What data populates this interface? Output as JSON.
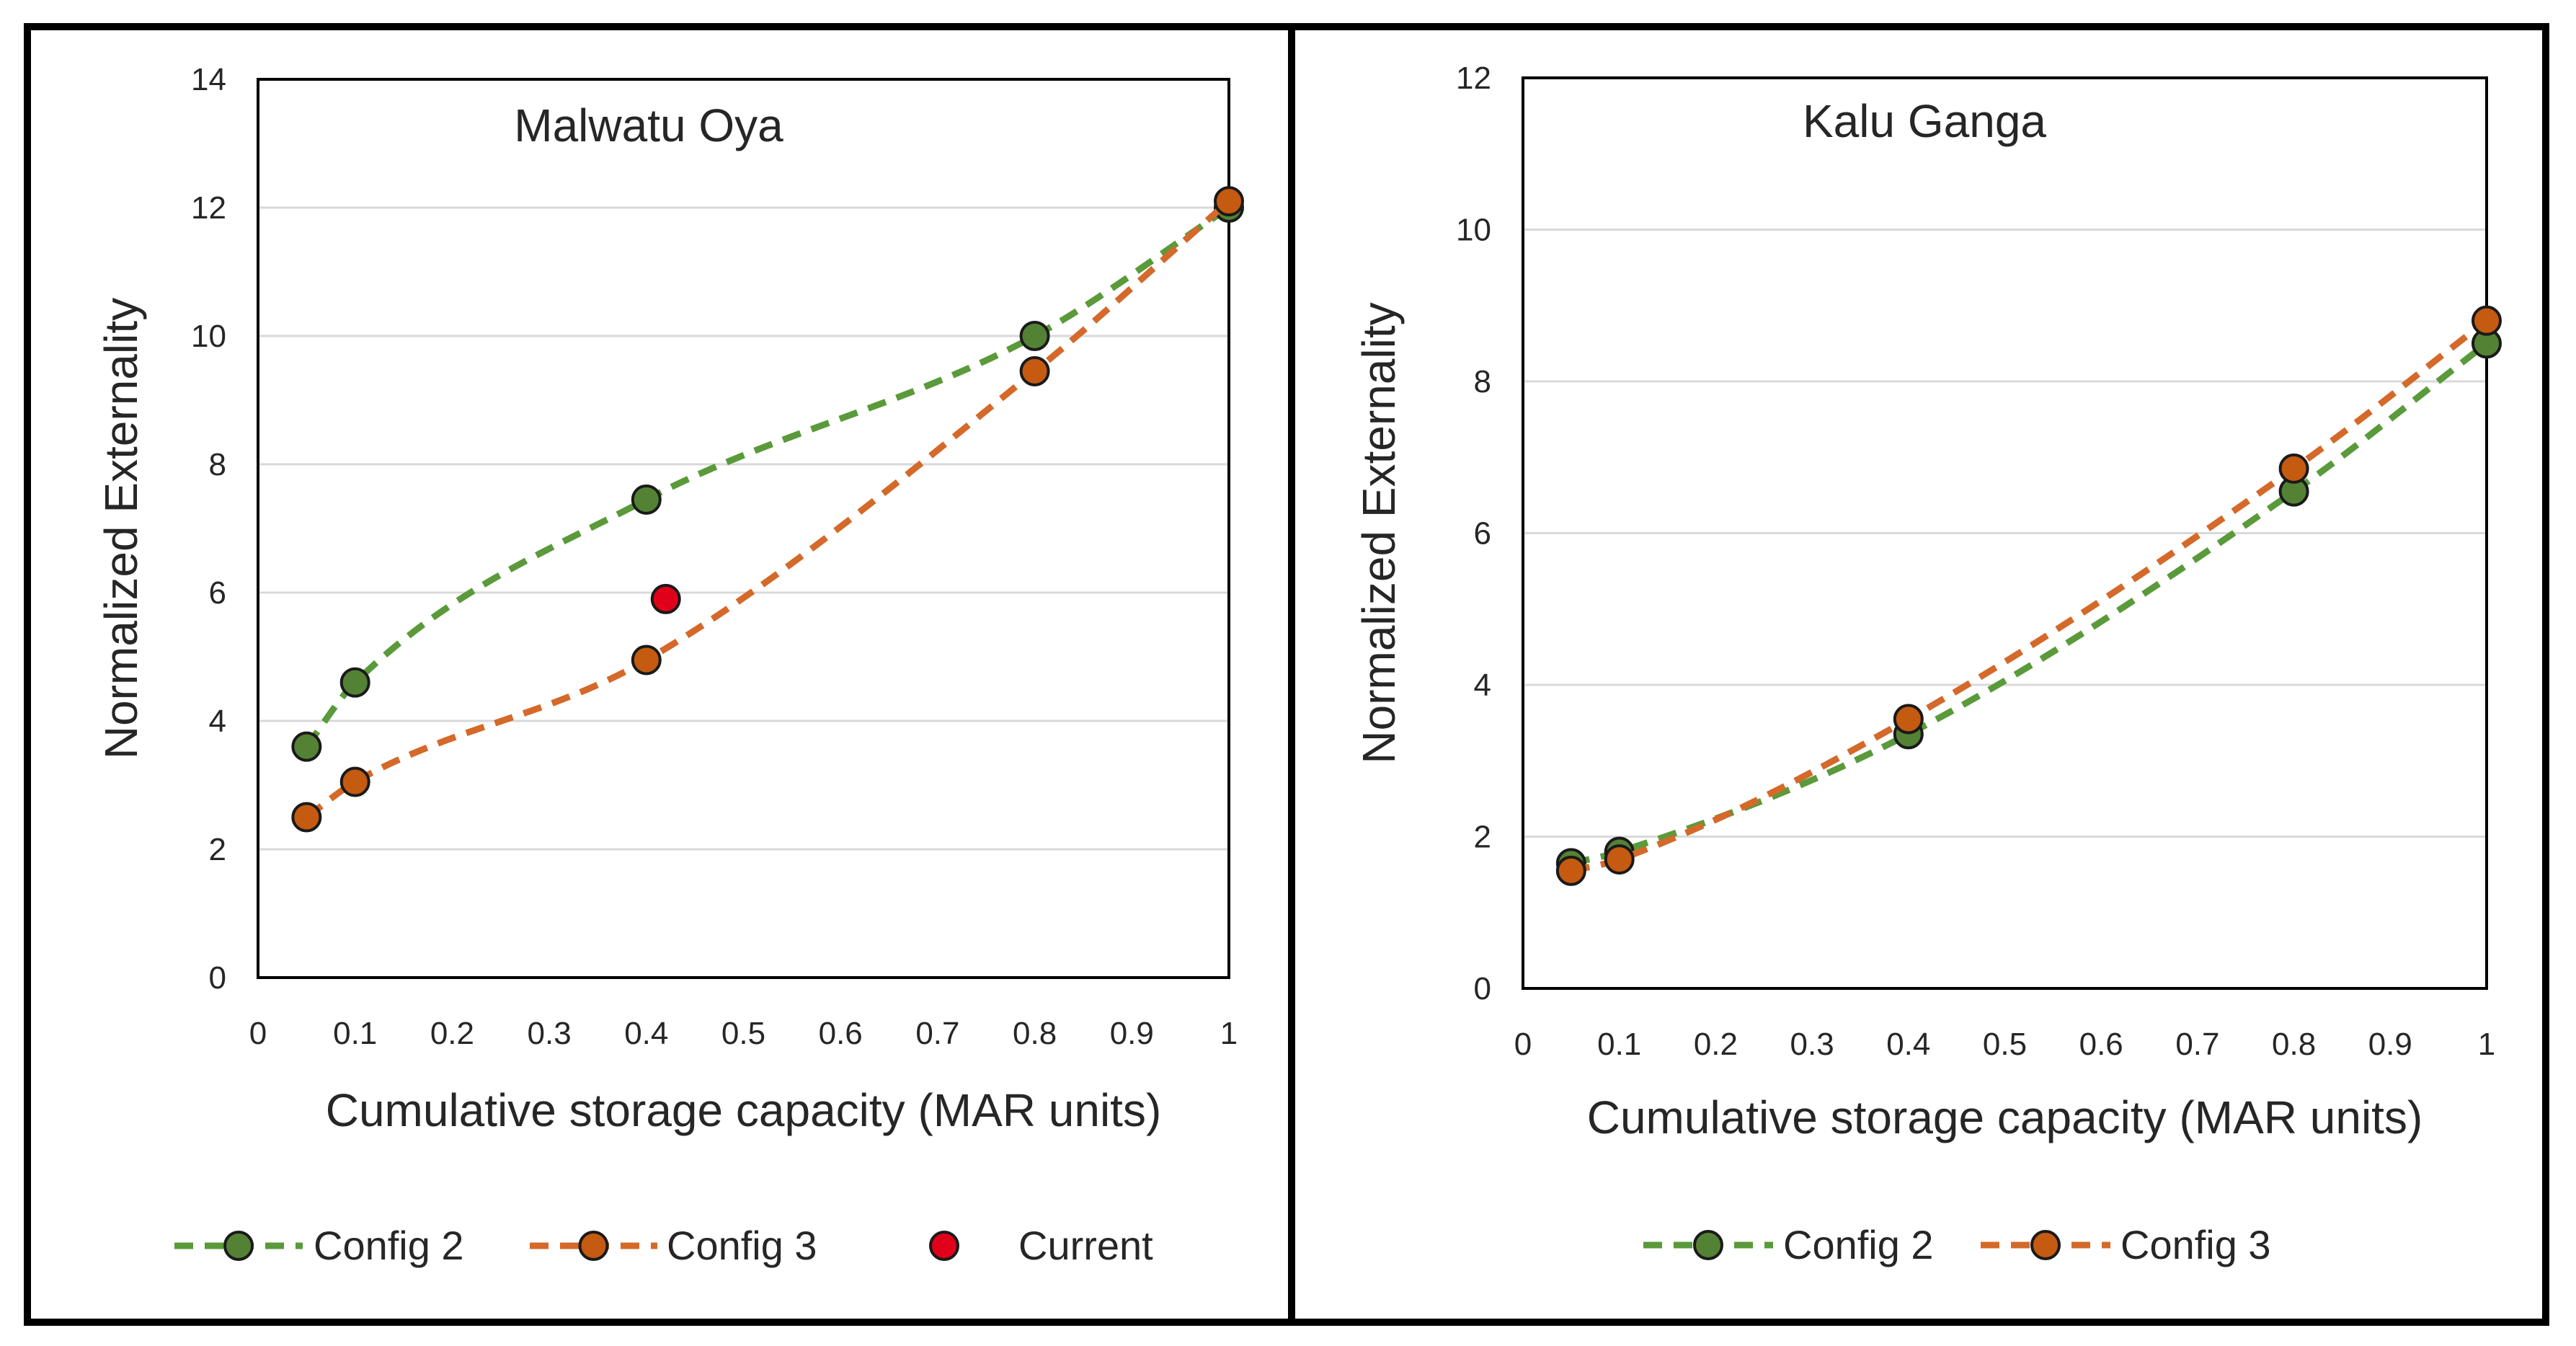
{
  "chart_data": [
    {
      "type": "line",
      "title": "Malwatu Oya",
      "xlabel": "Cumulative storage capacity  (MAR units)",
      "ylabel": "Normalized Externality",
      "xlim": [
        0,
        1
      ],
      "ylim": [
        0,
        14
      ],
      "x_ticks": [
        "0",
        "0.1",
        "0.2",
        "0.3",
        "0.4",
        "0.5",
        "0.6",
        "0.7",
        "0.8",
        "0.9",
        "1"
      ],
      "y_ticks": [
        "0",
        "2",
        "4",
        "6",
        "8",
        "10",
        "12",
        "14"
      ],
      "grid": "horizontal",
      "legend_position": "bottom",
      "series": [
        {
          "name": "Config 2",
          "line": "dashed",
          "marker": "circle",
          "color": "#548235",
          "line_color": "#5a9a3a",
          "x": [
            0.05,
            0.1,
            0.4,
            0.8,
            1.0
          ],
          "y": [
            3.6,
            4.6,
            7.45,
            10.0,
            12.0
          ]
        },
        {
          "name": "Config 3",
          "line": "dashed",
          "marker": "circle",
          "color": "#c55a11",
          "line_color": "#d4692a",
          "x": [
            0.05,
            0.1,
            0.4,
            0.8,
            1.0
          ],
          "y": [
            2.5,
            3.05,
            4.95,
            9.45,
            12.1
          ]
        },
        {
          "name": "Current",
          "line": "none",
          "marker": "circle",
          "color": "#e0001a",
          "x": [
            0.42
          ],
          "y": [
            5.9
          ]
        }
      ]
    },
    {
      "type": "line",
      "title": "Kalu Ganga",
      "xlabel": "Cumulative storage capacity  (MAR units)",
      "ylabel": "Normalized Externality",
      "xlim": [
        0,
        1
      ],
      "ylim": [
        0,
        12
      ],
      "x_ticks": [
        "0",
        "0.1",
        "0.2",
        "0.3",
        "0.4",
        "0.5",
        "0.6",
        "0.7",
        "0.8",
        "0.9",
        "1"
      ],
      "y_ticks": [
        "0",
        "2",
        "4",
        "6",
        "8",
        "10",
        "12"
      ],
      "grid": "horizontal",
      "legend_position": "bottom",
      "series": [
        {
          "name": "Config 2",
          "line": "dashed",
          "marker": "circle",
          "color": "#548235",
          "line_color": "#5a9a3a",
          "x": [
            0.05,
            0.1,
            0.4,
            0.8,
            1.0
          ],
          "y": [
            1.65,
            1.8,
            3.35,
            6.55,
            8.5
          ]
        },
        {
          "name": "Config 3",
          "line": "dashed",
          "marker": "circle",
          "color": "#c55a11",
          "line_color": "#d4692a",
          "x": [
            0.05,
            0.1,
            0.4,
            0.8,
            1.0
          ],
          "y": [
            1.55,
            1.7,
            3.55,
            6.85,
            8.8
          ]
        }
      ]
    }
  ]
}
